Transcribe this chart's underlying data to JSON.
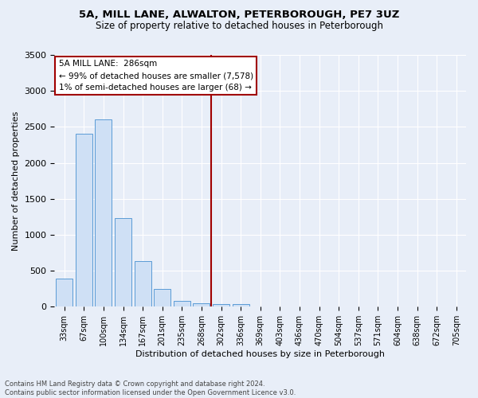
{
  "title1": "5A, MILL LANE, ALWALTON, PETERBOROUGH, PE7 3UZ",
  "title2": "Size of property relative to detached houses in Peterborough",
  "xlabel": "Distribution of detached houses by size in Peterborough",
  "ylabel": "Number of detached properties",
  "footnote": "Contains HM Land Registry data © Crown copyright and database right 2024.\nContains public sector information licensed under the Open Government Licence v3.0.",
  "bar_color": "#cfe0f5",
  "bar_edge_color": "#5b9bd5",
  "vline_color": "#a00000",
  "vline_x_idx": 8,
  "annotation_title": "5A MILL LANE:  286sqm",
  "annotation_line1": "← 99% of detached houses are smaller (7,578)",
  "annotation_line2": "1% of semi-detached houses are larger (68) →",
  "annotation_box_color": "#ffffff",
  "annotation_box_edge": "#a00000",
  "categories": [
    "33sqm",
    "67sqm",
    "100sqm",
    "134sqm",
    "167sqm",
    "201sqm",
    "235sqm",
    "268sqm",
    "302sqm",
    "336sqm",
    "369sqm",
    "403sqm",
    "436sqm",
    "470sqm",
    "504sqm",
    "537sqm",
    "571sqm",
    "604sqm",
    "638sqm",
    "672sqm",
    "705sqm"
  ],
  "values": [
    390,
    2400,
    2600,
    1230,
    630,
    250,
    80,
    50,
    40,
    40,
    0,
    0,
    0,
    0,
    0,
    0,
    0,
    0,
    0,
    0,
    0
  ],
  "ylim": [
    0,
    3500
  ],
  "yticks": [
    0,
    500,
    1000,
    1500,
    2000,
    2500,
    3000,
    3500
  ],
  "bg_color": "#e8eef8",
  "plot_bg_color": "#e8eef8",
  "grid_color": "#ffffff"
}
